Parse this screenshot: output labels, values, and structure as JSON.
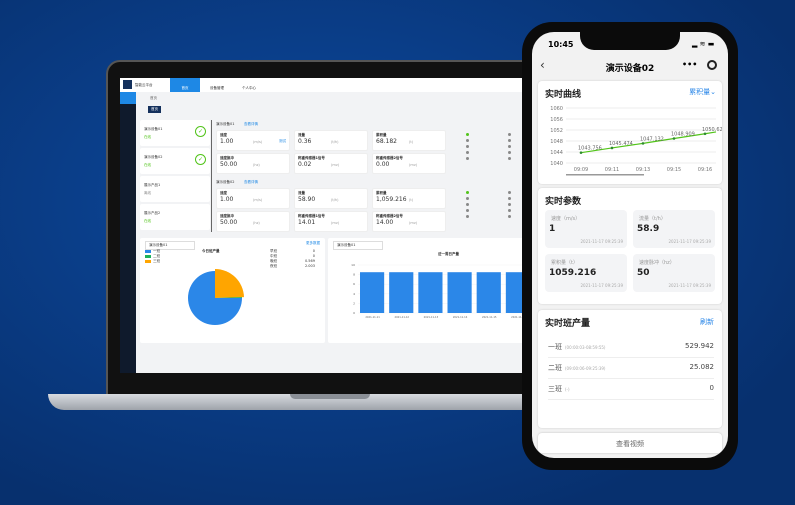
{
  "laptop": {
    "app_name": "智能云平台",
    "nav": [
      {
        "label": "首页",
        "icon": "home-icon"
      },
      {
        "label": "设备管理",
        "icon": "wrench-icon"
      },
      {
        "label": "个人中心",
        "icon": "user-icon"
      }
    ],
    "breadcrumb": "首页",
    "tag": "首页",
    "devices": [
      {
        "name": "演示设备01",
        "status": "在线"
      },
      {
        "name": "演示设备02",
        "status": "在线"
      },
      {
        "name": "展示产品1",
        "status": "离线"
      },
      {
        "name": "展示产品2",
        "status": "在线"
      }
    ],
    "groups": [
      {
        "name": "演示设备01",
        "link": "查看详情",
        "params": [
          {
            "label": "速度",
            "value": "1.00",
            "unit": "(m/s)",
            "action": "测试"
          },
          {
            "label": "流量",
            "value": "0.36",
            "unit": "(t/h)"
          },
          {
            "label": "累积量",
            "value": "68.182",
            "unit": "(t)"
          },
          {
            "label": "速度脉冲",
            "value": "50.00",
            "unit": "(hz)"
          },
          {
            "label": "称重传感器1信号",
            "value": "0.02",
            "unit": "(mv)"
          },
          {
            "label": "称重传感器2信号",
            "value": "0.00",
            "unit": "(mv)"
          }
        ]
      },
      {
        "name": "演示设备02",
        "link": "查看详情",
        "params": [
          {
            "label": "速度",
            "value": "1.00",
            "unit": "(m/s)"
          },
          {
            "label": "流量",
            "value": "58.90",
            "unit": "(t/h)"
          },
          {
            "label": "累积量",
            "value": "1,059.216",
            "unit": "(t)"
          },
          {
            "label": "速度脉冲",
            "value": "50.00",
            "unit": "(hz)"
          },
          {
            "label": "称重传感器1信号",
            "value": "14.01",
            "unit": "(mv)"
          },
          {
            "label": "称重传感器2信号",
            "value": "14.00",
            "unit": "(mv)"
          }
        ]
      }
    ],
    "pie_panel": {
      "select": "演示设备01",
      "title": "今日班产量",
      "link": "更多数据",
      "legend": [
        "一班",
        "二班",
        "三班"
      ],
      "stats": [
        {
          "label": "早班",
          "value": "0"
        },
        {
          "label": "中班",
          "value": "0"
        },
        {
          "label": "晚班",
          "value": "0.569"
        },
        {
          "label": "夜班",
          "value": "2.003"
        }
      ],
      "colors": [
        "#2b87e8",
        "#1fb25a",
        "#ffa500"
      ],
      "slices": [
        75,
        0.5,
        24.5
      ]
    },
    "bar_panel": {
      "select": "演示设备01",
      "title": "近一周日产量",
      "y_ticks": [
        "0",
        "2",
        "4",
        "6",
        "8",
        "10"
      ],
      "values": [
        8.5,
        8.5,
        8.5,
        8.5,
        8.5,
        8.5
      ],
      "categories": [
        "2021-11-11",
        "2021-11-12",
        "2021-11-13",
        "2021-11-14",
        "2021-11-15",
        "2021-11-16"
      ],
      "color": "#2b87e8"
    }
  },
  "phone": {
    "time": "10:45",
    "title": "演示设备02",
    "curve": {
      "title": "实时曲线",
      "selector": "累积量",
      "chart_data": {
        "type": "line",
        "x": [
          "09:09",
          "09:11",
          "09:13",
          "09:15",
          "09:16"
        ],
        "values": [
          1043.756,
          1045.474,
          1047.132,
          1048.909,
          1050.627
        ],
        "labels": [
          "1043.756",
          "1045.474",
          "1047.132",
          "1048.909",
          "1050.627"
        ],
        "y_ticks": [
          "1040",
          "1044",
          "1048",
          "1052",
          "1056",
          "1060"
        ],
        "ylim": [
          1040,
          1060
        ],
        "grid": true,
        "color": "#52c41a"
      }
    },
    "params": {
      "title": "实时参数",
      "items": [
        {
          "label": "速度（m/s）",
          "value": "1",
          "time": "2021-11-17 09:25:39"
        },
        {
          "label": "流量（t/h）",
          "value": "58.9",
          "time": "2021-11-17 09:25:39"
        },
        {
          "label": "累积量（t）",
          "value": "1059.216",
          "time": "2021-11-17 09:25:39"
        },
        {
          "label": "速度脉冲（hz）",
          "value": "50",
          "time": "2021-11-17 09:25:39"
        }
      ]
    },
    "shifts": {
      "title": "实时班产量",
      "refresh": "刷新",
      "items": [
        {
          "name": "一班",
          "range": "(00:00:03-08:59:55)",
          "value": "529.942"
        },
        {
          "name": "二班",
          "range": "(09:00:06-09:25:39)",
          "value": "25.082"
        },
        {
          "name": "三班",
          "range": "(-)",
          "value": "0"
        }
      ]
    },
    "video_button": "查看视频",
    "accent": "#2b87e8"
  }
}
